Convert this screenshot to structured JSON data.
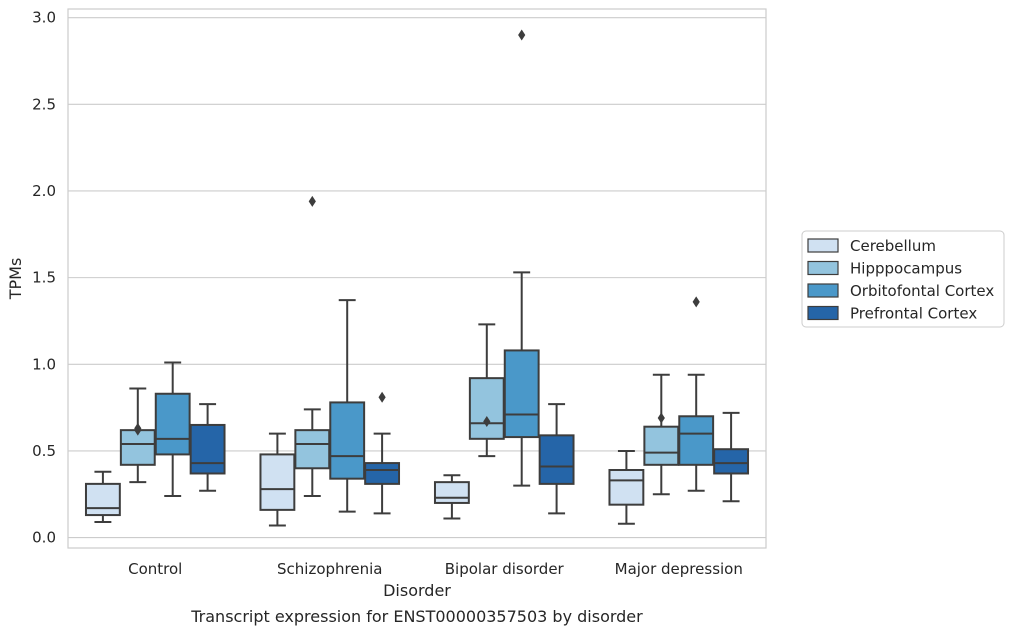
{
  "chart_data": {
    "type": "box",
    "title": "",
    "caption": "Transcript expression for ENST00000357503 by disorder",
    "xlabel": "Disorder",
    "ylabel": "TPMs",
    "ylim": [
      -0.06,
      3.05
    ],
    "yticks": [
      "0.0",
      "0.5",
      "1.0",
      "1.5",
      "2.0",
      "2.5",
      "3.0"
    ],
    "categories": [
      "Control",
      "Schizophrenia",
      "Bipolar disorder",
      "Major depression"
    ],
    "grid": "horizontal",
    "legend_position": "right",
    "series": [
      {
        "name": "Cerebellum",
        "color": "#d0e1f2",
        "boxes": [
          {
            "whislo": 0.09,
            "q1": 0.13,
            "med": 0.17,
            "q3": 0.31,
            "whishi": 0.38,
            "fliers": []
          },
          {
            "whislo": 0.07,
            "q1": 0.16,
            "med": 0.28,
            "q3": 0.48,
            "whishi": 0.6,
            "fliers": []
          },
          {
            "whislo": 0.11,
            "q1": 0.2,
            "med": 0.23,
            "q3": 0.32,
            "whishi": 0.36,
            "fliers": []
          },
          {
            "whislo": 0.08,
            "q1": 0.19,
            "med": 0.33,
            "q3": 0.39,
            "whishi": 0.5,
            "fliers": []
          }
        ]
      },
      {
        "name": "Hipppocampus",
        "color": "#93c4de",
        "boxes": [
          {
            "whislo": 0.32,
            "q1": 0.42,
            "med": 0.54,
            "q3": 0.62,
            "whishi": 0.86,
            "fliers": [
              0.62,
              0.63
            ]
          },
          {
            "whislo": 0.24,
            "q1": 0.4,
            "med": 0.54,
            "q3": 0.62,
            "whishi": 0.74,
            "fliers": [
              1.94
            ]
          },
          {
            "whislo": 0.47,
            "q1": 0.57,
            "med": 0.66,
            "q3": 0.92,
            "whishi": 1.23,
            "fliers": [
              0.67
            ]
          },
          {
            "whislo": 0.25,
            "q1": 0.42,
            "med": 0.49,
            "q3": 0.64,
            "whishi": 0.94,
            "fliers": [
              0.69
            ]
          }
        ]
      },
      {
        "name": "Orbitofontal Cortex",
        "color": "#4a98c9",
        "boxes": [
          {
            "whislo": 0.24,
            "q1": 0.48,
            "med": 0.57,
            "q3": 0.83,
            "whishi": 1.01,
            "fliers": []
          },
          {
            "whislo": 0.15,
            "q1": 0.34,
            "med": 0.47,
            "q3": 0.78,
            "whishi": 1.37,
            "fliers": []
          },
          {
            "whislo": 0.3,
            "q1": 0.58,
            "med": 0.71,
            "q3": 1.08,
            "whishi": 1.53,
            "fliers": [
              2.9
            ]
          },
          {
            "whislo": 0.27,
            "q1": 0.42,
            "med": 0.6,
            "q3": 0.7,
            "whishi": 0.94,
            "fliers": [
              1.36
            ]
          }
        ]
      },
      {
        "name": "Prefrontal Cortex",
        "color": "#2565a8",
        "boxes": [
          {
            "whislo": 0.27,
            "q1": 0.37,
            "med": 0.43,
            "q3": 0.65,
            "whishi": 0.77,
            "fliers": []
          },
          {
            "whislo": 0.14,
            "q1": 0.31,
            "med": 0.39,
            "q3": 0.43,
            "whishi": 0.6,
            "fliers": [
              0.81
            ]
          },
          {
            "whislo": 0.14,
            "q1": 0.31,
            "med": 0.41,
            "q3": 0.59,
            "whishi": 0.77,
            "fliers": []
          },
          {
            "whislo": 0.21,
            "q1": 0.37,
            "med": 0.43,
            "q3": 0.51,
            "whishi": 0.72,
            "fliers": []
          }
        ]
      }
    ]
  }
}
